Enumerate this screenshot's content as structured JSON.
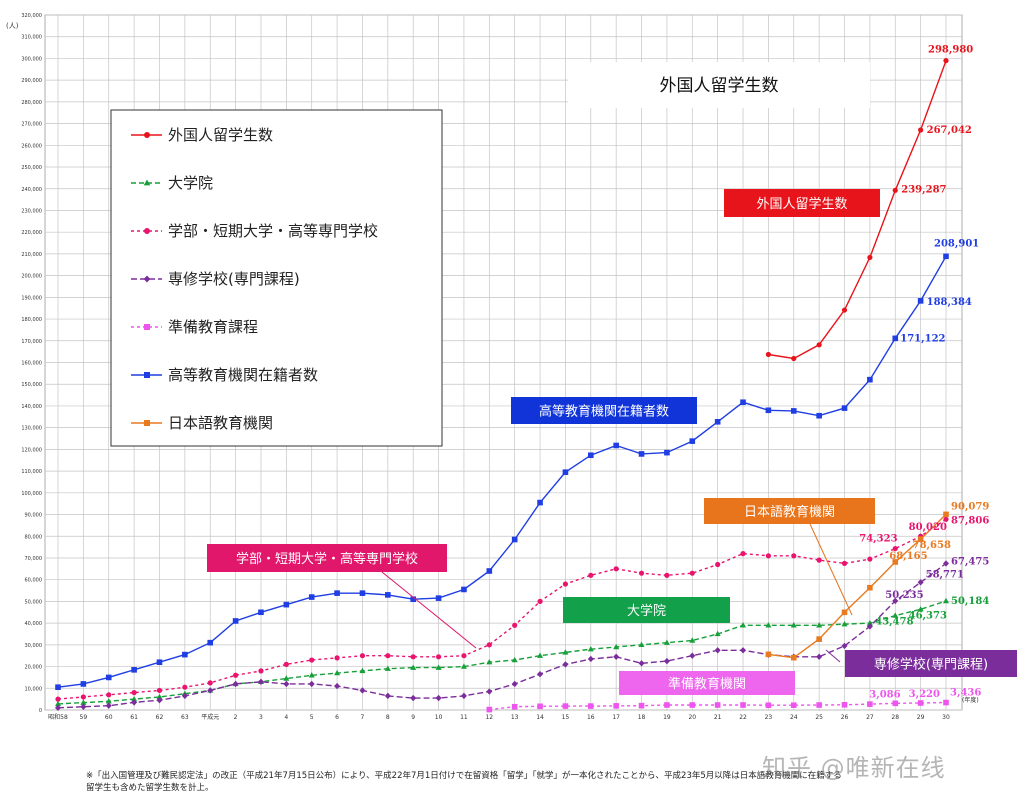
{
  "chart_data": {
    "type": "line",
    "title": "外国人留学生数",
    "y_unit_label": "(人)",
    "x_unit_label": "(年度)",
    "ylim": [
      0,
      320000
    ],
    "ytick_step": 10000,
    "grid": true,
    "legend_position": "top-left",
    "categories": [
      "昭和58",
      "59",
      "60",
      "61",
      "62",
      "63",
      "平成元",
      "2",
      "3",
      "4",
      "5",
      "6",
      "7",
      "8",
      "9",
      "10",
      "11",
      "12",
      "13",
      "14",
      "15",
      "16",
      "17",
      "18",
      "19",
      "20",
      "21",
      "22",
      "23",
      "24",
      "25",
      "26",
      "27",
      "28",
      "29",
      "30"
    ],
    "series": [
      {
        "name": "外国人留学生数",
        "color": "#e8141b",
        "marker": "circle",
        "dash": "",
        "values": [
          null,
          null,
          null,
          null,
          null,
          null,
          null,
          null,
          null,
          null,
          null,
          null,
          null,
          null,
          null,
          null,
          null,
          null,
          null,
          null,
          null,
          null,
          null,
          null,
          null,
          null,
          null,
          null,
          163697,
          161848,
          168145,
          184155,
          208379,
          239287,
          267042,
          298980
        ],
        "labels": [
          {
            "i": 33,
            "text": "239,287"
          },
          {
            "i": 34,
            "text": "267,042"
          },
          {
            "i": 35,
            "text": "298,980"
          }
        ]
      },
      {
        "name": "大学院",
        "color": "#17a03a",
        "marker": "triangle",
        "dash": "5,3",
        "values": [
          2800,
          3400,
          4000,
          5000,
          6000,
          7500,
          9000,
          12000,
          13000,
          14500,
          16000,
          17000,
          18000,
          19000,
          19500,
          19500,
          20000,
          22000,
          23000,
          25000,
          26500,
          28000,
          29000,
          30000,
          31000,
          32000,
          35000,
          39000,
          39000,
          39000,
          39000,
          39500,
          40000,
          43478,
          46373,
          50184
        ],
        "labels": [
          {
            "i": 33,
            "text": "43,478"
          },
          {
            "i": 34,
            "text": "46,373"
          },
          {
            "i": 35,
            "text": "50,184"
          }
        ]
      },
      {
        "name": "学部・短期大学・高等専門学校",
        "color": "#e8146e",
        "marker": "circle",
        "dash": "3,3",
        "values": [
          5000,
          6000,
          7000,
          8000,
          9000,
          10500,
          12500,
          16000,
          18000,
          21000,
          23000,
          24000,
          25000,
          25000,
          24500,
          24500,
          25000,
          30000,
          39000,
          50000,
          58000,
          62000,
          65000,
          63000,
          62000,
          63000,
          67000,
          72000,
          71000,
          71000,
          69000,
          67500,
          69500,
          74323,
          80020,
          87806
        ],
        "labels": [
          {
            "i": 33,
            "text": "74,323"
          },
          {
            "i": 34,
            "text": "80,020"
          },
          {
            "i": 35,
            "text": "87,806"
          }
        ]
      },
      {
        "name": "専修学校(専門課程)",
        "color": "#7b2d9b",
        "marker": "diamond",
        "dash": "6,3",
        "values": [
          1000,
          1500,
          2000,
          3500,
          4500,
          6500,
          9000,
          12000,
          13000,
          12000,
          12000,
          11000,
          9000,
          6500,
          5500,
          5500,
          6500,
          8500,
          12000,
          16500,
          21000,
          23500,
          24500,
          21500,
          22500,
          25000,
          27500,
          27500,
          25500,
          24500,
          24500,
          29500,
          38500,
          50235,
          58771,
          67475
        ],
        "labels": [
          {
            "i": 33,
            "text": "50,235"
          },
          {
            "i": 34,
            "text": "58,771"
          },
          {
            "i": 35,
            "text": "67,475"
          }
        ]
      },
      {
        "name": "準備教育課程",
        "color": "#ee55ee",
        "marker": "square",
        "dash": "3,3",
        "values": [
          null,
          null,
          null,
          null,
          null,
          null,
          null,
          null,
          null,
          null,
          null,
          null,
          null,
          null,
          null,
          null,
          null,
          200,
          1500,
          1700,
          1800,
          1800,
          1900,
          2000,
          2300,
          2300,
          2300,
          2300,
          2200,
          2200,
          2300,
          2400,
          2700,
          3086,
          3220,
          3436
        ],
        "labels": [
          {
            "i": 33,
            "text": "3,086"
          },
          {
            "i": 34,
            "text": "3,220"
          },
          {
            "i": 35,
            "text": "3,436"
          }
        ]
      },
      {
        "name": "高等教育機関在籍者数",
        "color": "#1f3ee3",
        "marker": "square",
        "dash": "",
        "values": [
          10500,
          12000,
          15000,
          18500,
          22000,
          25500,
          31000,
          41000,
          45000,
          48500,
          52000,
          53800,
          53800,
          53000,
          51000,
          51500,
          55500,
          64000,
          78500,
          95500,
          109500,
          117300,
          121800,
          117900,
          118500,
          123800,
          132700,
          141700,
          138000,
          137700,
          135500,
          139000,
          152100,
          171122,
          188384,
          208901
        ],
        "labels": [
          {
            "i": 33,
            "text": "171,122"
          },
          {
            "i": 34,
            "text": "188,384"
          },
          {
            "i": 35,
            "text": "208,901"
          }
        ]
      },
      {
        "name": "日本語教育機関",
        "color": "#e87a20",
        "marker": "square",
        "dash": "",
        "values": [
          null,
          null,
          null,
          null,
          null,
          null,
          null,
          null,
          null,
          null,
          null,
          null,
          null,
          null,
          null,
          null,
          null,
          null,
          null,
          null,
          null,
          null,
          null,
          null,
          null,
          null,
          null,
          null,
          25622,
          24092,
          32626,
          44970,
          56317,
          68165,
          78658,
          90079
        ],
        "labels": [
          {
            "i": 33,
            "text": "68,165"
          },
          {
            "i": 34,
            "text": "78,658"
          },
          {
            "i": 35,
            "text": "90,079"
          }
        ]
      }
    ]
  },
  "callouts": [
    {
      "text": "外国人留学生数",
      "fill": "#e8141b"
    },
    {
      "text": "高等教育機関在籍者数",
      "fill": "#1034d8"
    },
    {
      "text": "日本語教育機関",
      "fill": "#e8741b"
    },
    {
      "text": "学部・短期大学・高等専門学校",
      "fill": "#e0176a"
    },
    {
      "text": "大学院",
      "fill": "#12a04a"
    },
    {
      "text": "専修学校(専門課程)",
      "fill": "#7b2d9b"
    },
    {
      "text": "準備教育機関",
      "fill": "#ee66ee"
    }
  ],
  "footnote": "※「出入国管理及び難民認定法」の改正（平成21年7月15日公布）により、平成22年7月1日付けで在留資格「留学」「就学」が一本化されたことから、平成23年5月以降は日本語教育機関に在籍する\n留学生も含めた留学生数を計上。",
  "watermark": "知乎 @唯新在线"
}
